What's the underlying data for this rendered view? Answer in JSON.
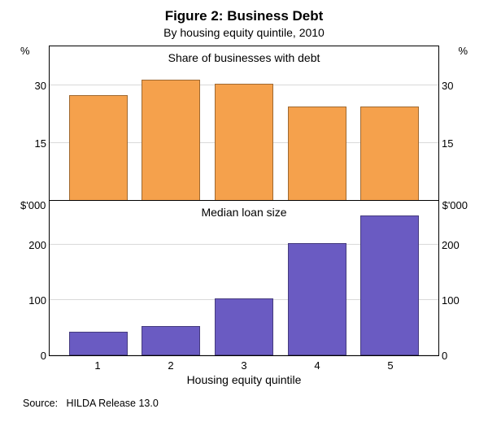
{
  "title": "Figure 2: Business Debt",
  "subtitle": "By housing equity quintile, 2010",
  "xaxis_title": "Housing equity quintile",
  "source_label": "Source:",
  "source_text": "HILDA Release 13.0",
  "categories": [
    "1",
    "2",
    "3",
    "4",
    "5"
  ],
  "colors": {
    "top_bar": "#f5a14c",
    "bottom_bar": "#6a5bc2",
    "grid": "#d9d9d9",
    "text": "#000000",
    "background": "#ffffff"
  },
  "panels": {
    "top": {
      "title": "Share of businesses with debt",
      "unit": "%",
      "ymax": 40,
      "yticks": [
        15,
        30
      ],
      "values": [
        27,
        31,
        30,
        24,
        24
      ],
      "bar_color": "#f5a14c"
    },
    "bottom": {
      "title": "Median loan size",
      "unit": "$'000",
      "ymax": 280,
      "yticks": [
        0,
        100,
        200
      ],
      "values": [
        40,
        50,
        100,
        200,
        250
      ],
      "bar_color": "#6a5bc2"
    }
  }
}
